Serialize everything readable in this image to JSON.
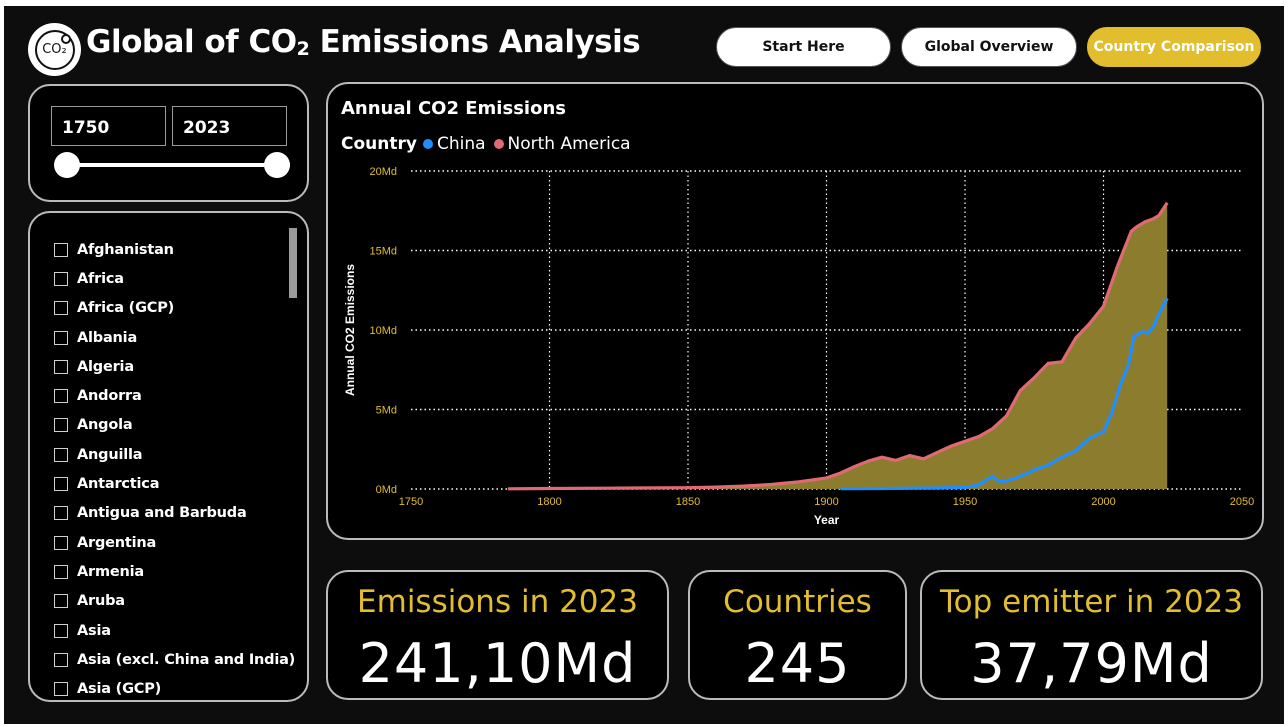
{
  "header": {
    "logo_text": "CO₂",
    "title_prefix": "Global of CO",
    "title_sub": "2",
    "title_suffix": " Emissions Analysis",
    "nav": {
      "start_label": "Start Here",
      "global_label": "Global Overview",
      "country_label": "Country Comparison"
    },
    "active_color": "#e2bd2e"
  },
  "slider": {
    "from": "1750",
    "to": "2023",
    "min_value": 1750,
    "max_value": 2023
  },
  "country_list": [
    "Afghanistan",
    "Africa",
    "Africa (GCP)",
    "Albania",
    "Algeria",
    "Andorra",
    "Angola",
    "Anguilla",
    "Antarctica",
    "Antigua and Barbuda",
    "Argentina",
    "Armenia",
    "Aruba",
    "Asia",
    "Asia (excl. China and India)",
    "Asia (GCP)"
  ],
  "chart": {
    "title": "Annual CO2 Emissions",
    "legend_title": "Country",
    "legend": [
      {
        "name": "China",
        "color": "#1f8fff"
      },
      {
        "name": "North America",
        "color": "#e06a74"
      }
    ]
  },
  "chart_data": {
    "type": "area",
    "title": "Annual CO2 Emissions",
    "xlabel": "Year",
    "ylabel": "Annual CO2 Emissions",
    "xlim": [
      1750,
      2050
    ],
    "ylim": [
      0,
      20
    ],
    "y_unit_suffix": "Md",
    "x_ticks": [
      1750,
      1800,
      1850,
      1900,
      1950,
      2000,
      2050
    ],
    "y_ticks": [
      0,
      5,
      10,
      15,
      20
    ],
    "grid": true,
    "area_fill": "#8c7d2e",
    "series": [
      {
        "name": "North America",
        "color": "#e06a74",
        "x": [
          1785,
          1800,
          1820,
          1840,
          1850,
          1860,
          1870,
          1880,
          1890,
          1900,
          1905,
          1910,
          1915,
          1920,
          1925,
          1930,
          1935,
          1940,
          1945,
          1950,
          1955,
          1960,
          1965,
          1970,
          1975,
          1980,
          1985,
          1990,
          1995,
          2000,
          2005,
          2010,
          2012,
          2015,
          2018,
          2020,
          2023
        ],
        "values": [
          0.01,
          0.03,
          0.05,
          0.07,
          0.08,
          0.12,
          0.18,
          0.28,
          0.45,
          0.7,
          1.0,
          1.4,
          1.75,
          2.0,
          1.8,
          2.1,
          1.9,
          2.3,
          2.7,
          3.0,
          3.3,
          3.8,
          4.6,
          6.2,
          7.0,
          7.9,
          8.0,
          9.5,
          10.4,
          11.5,
          14.0,
          16.2,
          16.5,
          16.8,
          17.0,
          17.2,
          18.0
        ]
      },
      {
        "name": "China",
        "color": "#1f8fff",
        "x": [
          1905,
          1920,
          1940,
          1950,
          1955,
          1958,
          1960,
          1962,
          1965,
          1970,
          1975,
          1980,
          1985,
          1990,
          1995,
          2000,
          2003,
          2006,
          2009,
          2011,
          2014,
          2016,
          2018,
          2020,
          2023
        ],
        "values": [
          0.02,
          0.03,
          0.06,
          0.1,
          0.25,
          0.6,
          0.8,
          0.5,
          0.5,
          0.8,
          1.2,
          1.5,
          2.0,
          2.4,
          3.2,
          3.6,
          4.8,
          6.5,
          7.8,
          9.6,
          9.9,
          9.8,
          10.2,
          11.0,
          12.0
        ]
      }
    ]
  },
  "kpis": {
    "emissions_label": "Emissions in 2023",
    "emissions_value": "241,10Md",
    "countries_label": "Countries",
    "countries_value": "245",
    "top_label": "Top emitter in 2023",
    "top_value": "37,79Md"
  }
}
